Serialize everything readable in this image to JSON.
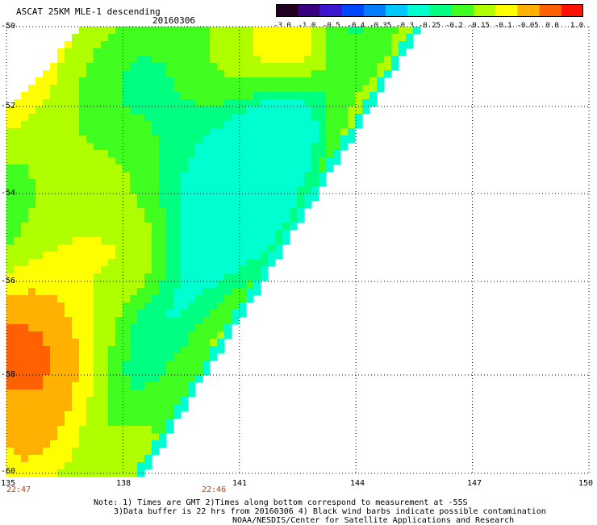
{
  "header": {
    "title": "ASCAT 25KM MLE-1 descending",
    "date": "20160306"
  },
  "colorbar": {
    "labels": [
      "-3.0",
      "-1.0",
      "-0.5",
      "-0.4",
      "-0.35",
      "-0.3",
      "-0.25",
      "-0.2",
      "-0.15",
      "-0.1",
      "-0.05",
      "0.0",
      "1.0"
    ],
    "colors": [
      "#200020",
      "#3a0080",
      "#3b17d0",
      "#0046ff",
      "#007eff",
      "#00c8ff",
      "#00ffd0",
      "#00ff80",
      "#40ff20",
      "#b0ff00",
      "#ffff00",
      "#ffb000",
      "#ff6000",
      "#ff1000"
    ]
  },
  "map": {
    "lat_labels": [
      "-50",
      "-52",
      "-54",
      "-56",
      "-58",
      "-60"
    ],
    "lon_labels": [
      "135",
      "138",
      "141",
      "144",
      "147",
      "150"
    ],
    "time_labels": [
      "22:47",
      "22:46"
    ],
    "lat_range": [
      -60,
      -50
    ],
    "lon_range": [
      135,
      150
    ],
    "gridlines": true
  },
  "notes": {
    "line1": "Note: 1) Times are GMT 2)Times along bottom correspond to measurement at -55S",
    "line2": "3)Data buffer is 22 hrs from 20160306 4) Black wind barbs indicate possible contamination",
    "line3": "NOAA/NESDIS/Center for Satellite Applications and Research"
  }
}
